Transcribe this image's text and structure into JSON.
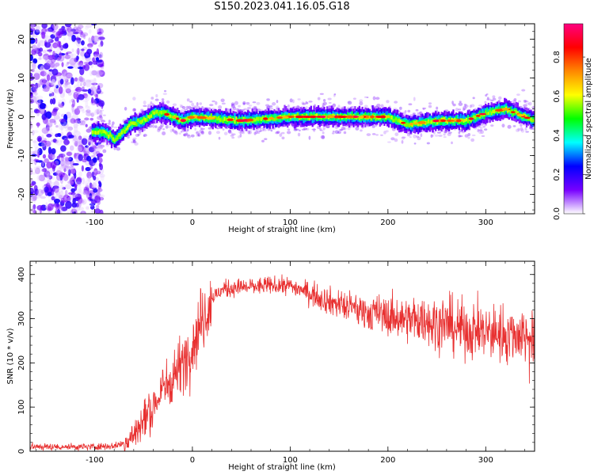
{
  "title": "S150.2023.041.16.05.G18",
  "chart_data": [
    {
      "type": "heatmap",
      "xlabel": "Height of straight line (km)",
      "ylabel": "Frequency (Hz)",
      "xlim": [
        -166,
        350
      ],
      "ylim": [
        -25,
        24
      ],
      "x_ticks": [
        -100,
        0,
        100,
        200,
        300
      ],
      "y_ticks": [
        -20,
        -10,
        0,
        10,
        20
      ],
      "grid": false,
      "colorbar": {
        "label": "Normalized spectral amplitude",
        "range": [
          0,
          0.97
        ],
        "ticks": [
          0.0,
          0.2,
          0.4,
          0.6,
          0.8
        ],
        "colors": [
          "#ffffff",
          "#7700ff",
          "#0000ff",
          "#00ffff",
          "#00ff00",
          "#ffff00",
          "#ff8800",
          "#ff0000",
          "#ff0080"
        ]
      },
      "ridge": {
        "x": [
          -103,
          -90,
          -80,
          -65,
          -50,
          -40,
          -30,
          -10,
          0,
          50,
          100,
          150,
          200,
          220,
          250,
          280,
          300,
          320,
          340,
          350
        ],
        "y": [
          -4,
          -4,
          -6,
          -2,
          -1,
          1,
          1,
          -1,
          0,
          -1,
          0,
          0,
          0,
          -2,
          -1,
          -1,
          1,
          2,
          0,
          -1
        ]
      },
      "noise_region": [
        -166,
        -100
      ]
    },
    {
      "type": "line",
      "xlabel": "Height of straight line (km)",
      "ylabel": "SNR (10 * v/v)",
      "xlim": [
        -166,
        350
      ],
      "ylim": [
        0,
        430
      ],
      "x_ticks": [
        -100,
        0,
        100,
        200,
        300
      ],
      "y_ticks": [
        0,
        100,
        200,
        300,
        400
      ],
      "color": "#e83030",
      "series": [
        {
          "x": [
            -166,
            -140,
            -110,
            -80,
            -70,
            -60,
            -50,
            -40,
            -30,
            -20,
            -10,
            0,
            10,
            20,
            30,
            40,
            60,
            80,
            100,
            120,
            140,
            160,
            180,
            200,
            220,
            240,
            260,
            280,
            300,
            320,
            340,
            350
          ],
          "y": [
            10,
            10,
            10,
            12,
            18,
            35,
            70,
            100,
            140,
            170,
            200,
            240,
            300,
            345,
            365,
            370,
            372,
            375,
            375,
            358,
            340,
            325,
            315,
            305,
            300,
            295,
            285,
            275,
            270,
            265,
            265,
            250
          ]
        }
      ]
    }
  ]
}
